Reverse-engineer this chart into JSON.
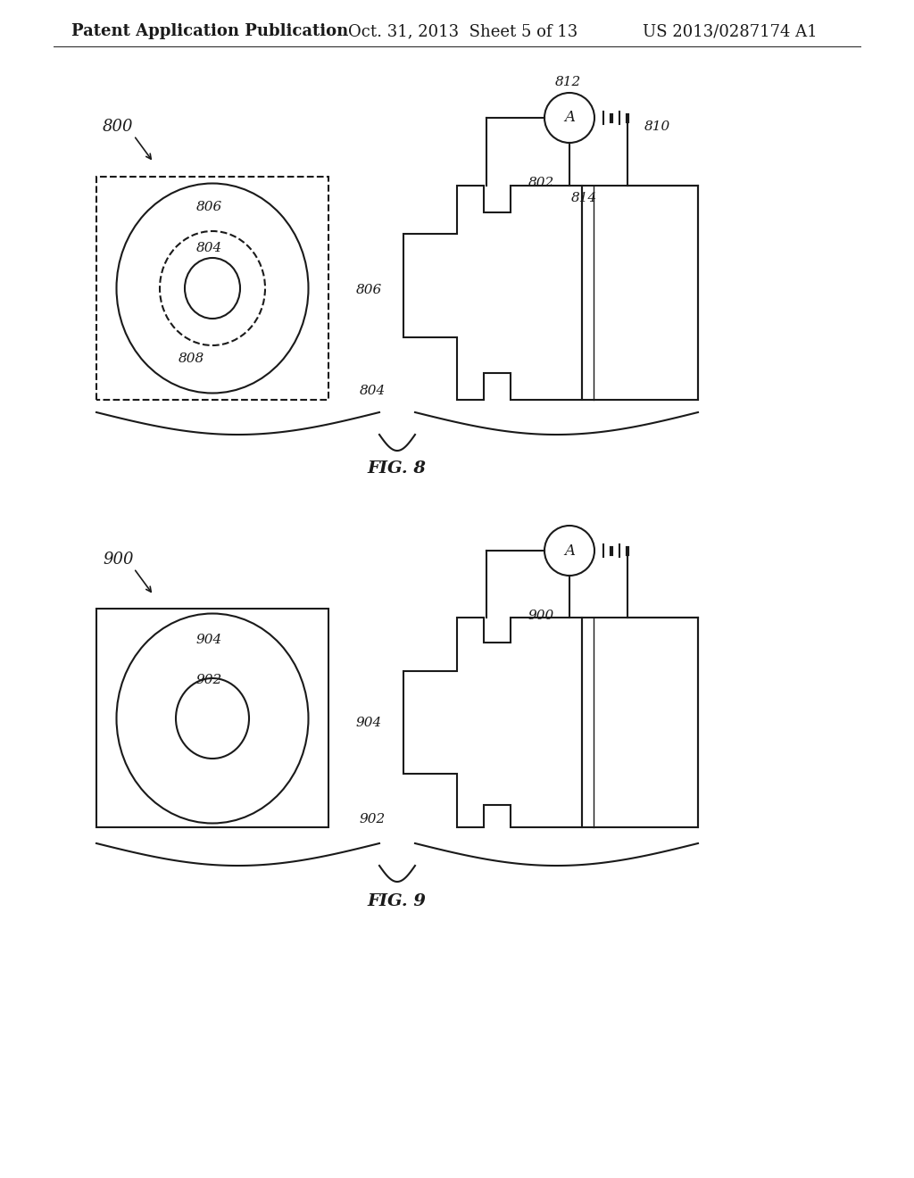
{
  "bg_color": "#ffffff",
  "header_left": "Patent Application Publication",
  "header_center": "Oct. 31, 2013  Sheet 5 of 13",
  "header_right": "US 2013/0287174 A1",
  "fig8_label": "FIG. 8",
  "fig9_label": "FIG. 9",
  "fig8_number": "800",
  "fig9_number": "900",
  "line_color": "#1a1a1a",
  "line_width": 1.5,
  "thin_lw": 1.0
}
